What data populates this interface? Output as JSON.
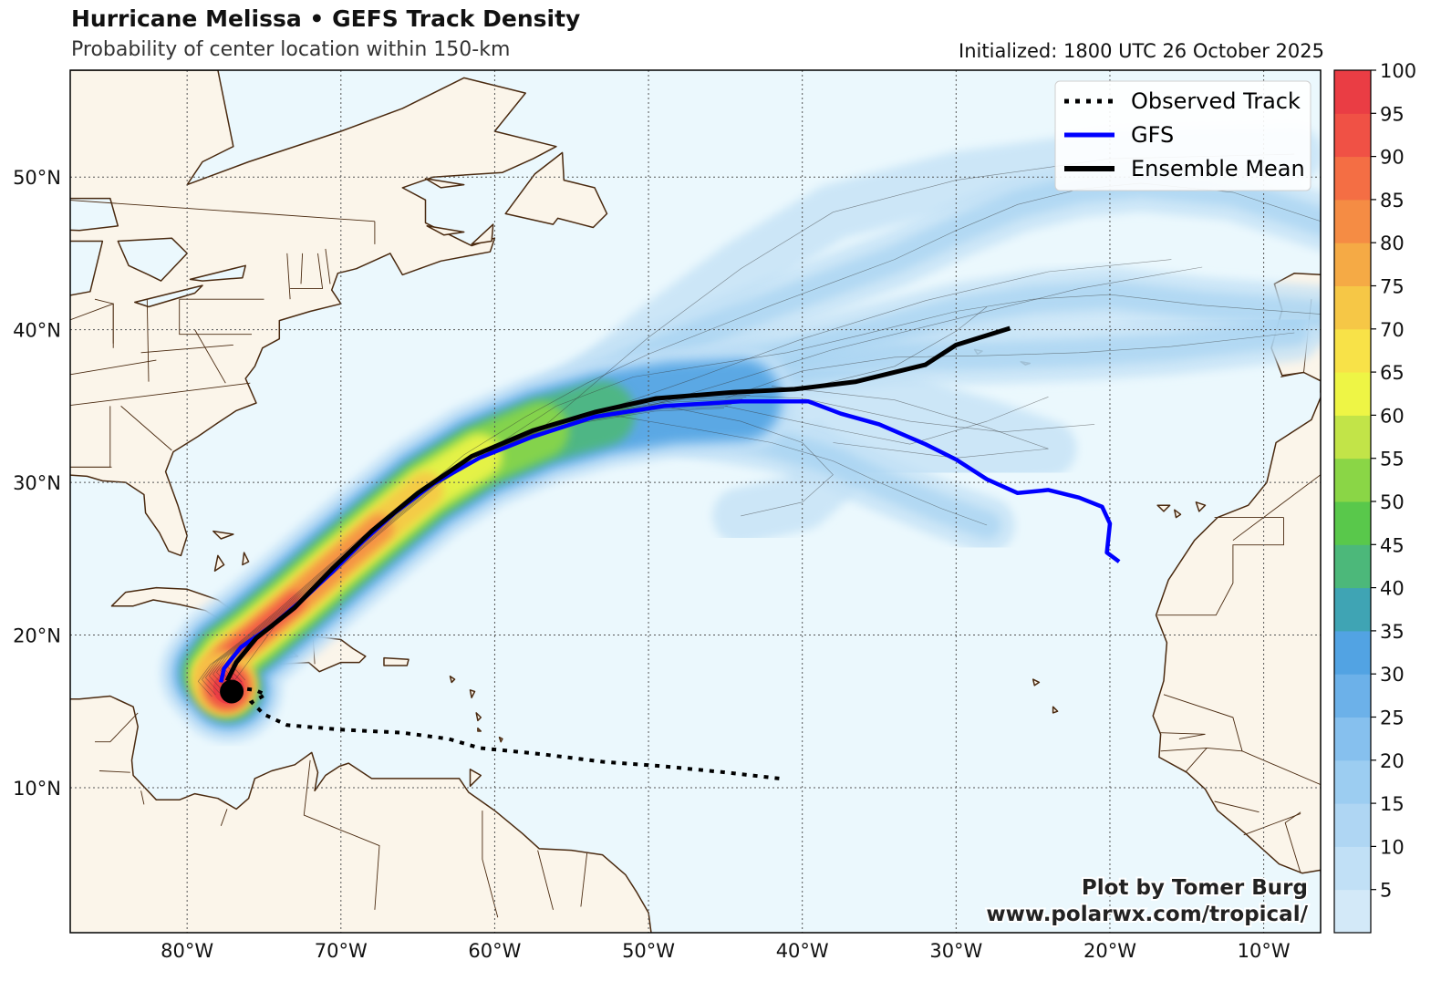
{
  "header": {
    "title": "Hurricane Melissa • GEFS Track Density",
    "subtitle": "Probability of center location within 150-km",
    "initialized": "Initialized: 1800 UTC 26 October 2025"
  },
  "legend": {
    "observed": "Observed Track",
    "gfs": "GFS",
    "mean": "Ensemble Mean"
  },
  "credit": {
    "line1": "Plot by Tomer Burg",
    "line2": "www.polarwx.com/tropical/"
  },
  "colors": {
    "ocean": "#ebf8fd",
    "land": "#fbf5ea",
    "border": "#4a2a10",
    "gfs": "#0000ff",
    "mean": "#000000"
  },
  "map": {
    "lon_range": [
      -87.6,
      -6.3
    ],
    "lat_range": [
      0.5,
      57.0
    ],
    "lon_ticks": [
      -80,
      -70,
      -60,
      -50,
      -40,
      -30,
      -20,
      -10
    ],
    "lon_labels": [
      "80°W",
      "70°W",
      "60°W",
      "50°W",
      "40°W",
      "30°W",
      "20°W",
      "10°W"
    ],
    "lat_ticks": [
      10,
      20,
      30,
      40,
      50
    ],
    "lat_labels": [
      "10°N",
      "20°N",
      "30°N",
      "40°N",
      "50°N"
    ],
    "grid": "dotted"
  },
  "colorbar": {
    "ticks": [
      5,
      10,
      15,
      20,
      25,
      30,
      35,
      40,
      45,
      50,
      55,
      60,
      65,
      70,
      75,
      80,
      85,
      90,
      95,
      100
    ],
    "labels": [
      "5",
      "10",
      "15",
      "20",
      "25",
      "30",
      "35",
      "40",
      "45",
      "50",
      "55",
      "60",
      "65",
      "70",
      "75",
      "80",
      "85",
      "90",
      "95",
      "100"
    ],
    "colors": [
      "#d3e9f8",
      "#c1e0f6",
      "#afd6f3",
      "#9ccdf1",
      "#86c0ee",
      "#6cb1e9",
      "#52a3e3",
      "#3fa4b4",
      "#4cb87a",
      "#59c84b",
      "#8ad646",
      "#c2e448",
      "#eef545",
      "#f8e248",
      "#f6c746",
      "#f5aa45",
      "#f58c44",
      "#f46e44",
      "#f05145",
      "#ea3d44"
    ]
  },
  "chart_data": {
    "type": "track-density-map",
    "observed_track": [
      [
        -41.5,
        10.6
      ],
      [
        -45,
        11.0
      ],
      [
        -49,
        11.4
      ],
      [
        -53,
        11.7
      ],
      [
        -57,
        12.2
      ],
      [
        -61,
        12.6
      ],
      [
        -63,
        13.2
      ],
      [
        -66,
        13.6
      ],
      [
        -70,
        13.8
      ],
      [
        -73.5,
        14.1
      ],
      [
        -75,
        14.8
      ],
      [
        -75.8,
        15.6
      ],
      [
        -74.9,
        16.1
      ],
      [
        -75.6,
        16.4
      ],
      [
        -76.4,
        16.5
      ],
      [
        -77.2,
        16.4
      ]
    ],
    "gfs_track": [
      [
        -77.8,
        16.9
      ],
      [
        -77.6,
        17.8
      ],
      [
        -76.5,
        19.2
      ],
      [
        -74.5,
        20.6
      ],
      [
        -72.5,
        22.3
      ],
      [
        -70.5,
        24.2
      ],
      [
        -68.5,
        26.2
      ],
      [
        -66.5,
        28.0
      ],
      [
        -64,
        29.9
      ],
      [
        -61,
        31.6
      ],
      [
        -57.5,
        33.0
      ],
      [
        -53.5,
        34.3
      ],
      [
        -49,
        35.0
      ],
      [
        -44,
        35.3
      ],
      [
        -39.6,
        35.3
      ],
      [
        -37.5,
        34.5
      ],
      [
        -35,
        33.8
      ],
      [
        -32,
        32.5
      ],
      [
        -30,
        31.5
      ],
      [
        -28,
        30.2
      ],
      [
        -26,
        29.3
      ],
      [
        -24,
        29.5
      ],
      [
        -22,
        29.0
      ],
      [
        -20.5,
        28.4
      ],
      [
        -20,
        27.3
      ],
      [
        -20.2,
        25.4
      ],
      [
        -19.4,
        24.8
      ]
    ],
    "mean_track": [
      [
        -77.4,
        17.0
      ],
      [
        -76.8,
        18.2
      ],
      [
        -75.5,
        19.8
      ],
      [
        -73,
        21.8
      ],
      [
        -70.5,
        24.4
      ],
      [
        -68,
        26.8
      ],
      [
        -65,
        29.3
      ],
      [
        -61.5,
        31.7
      ],
      [
        -57.5,
        33.4
      ],
      [
        -53.5,
        34.6
      ],
      [
        -49.5,
        35.5
      ],
      [
        -44.5,
        35.9
      ],
      [
        -40.5,
        36.1
      ],
      [
        -36.5,
        36.6
      ],
      [
        -32,
        37.7
      ],
      [
        -30,
        39.0
      ],
      [
        -26.5,
        40.1
      ]
    ],
    "storm_position": [
      -77.1,
      16.3
    ]
  }
}
